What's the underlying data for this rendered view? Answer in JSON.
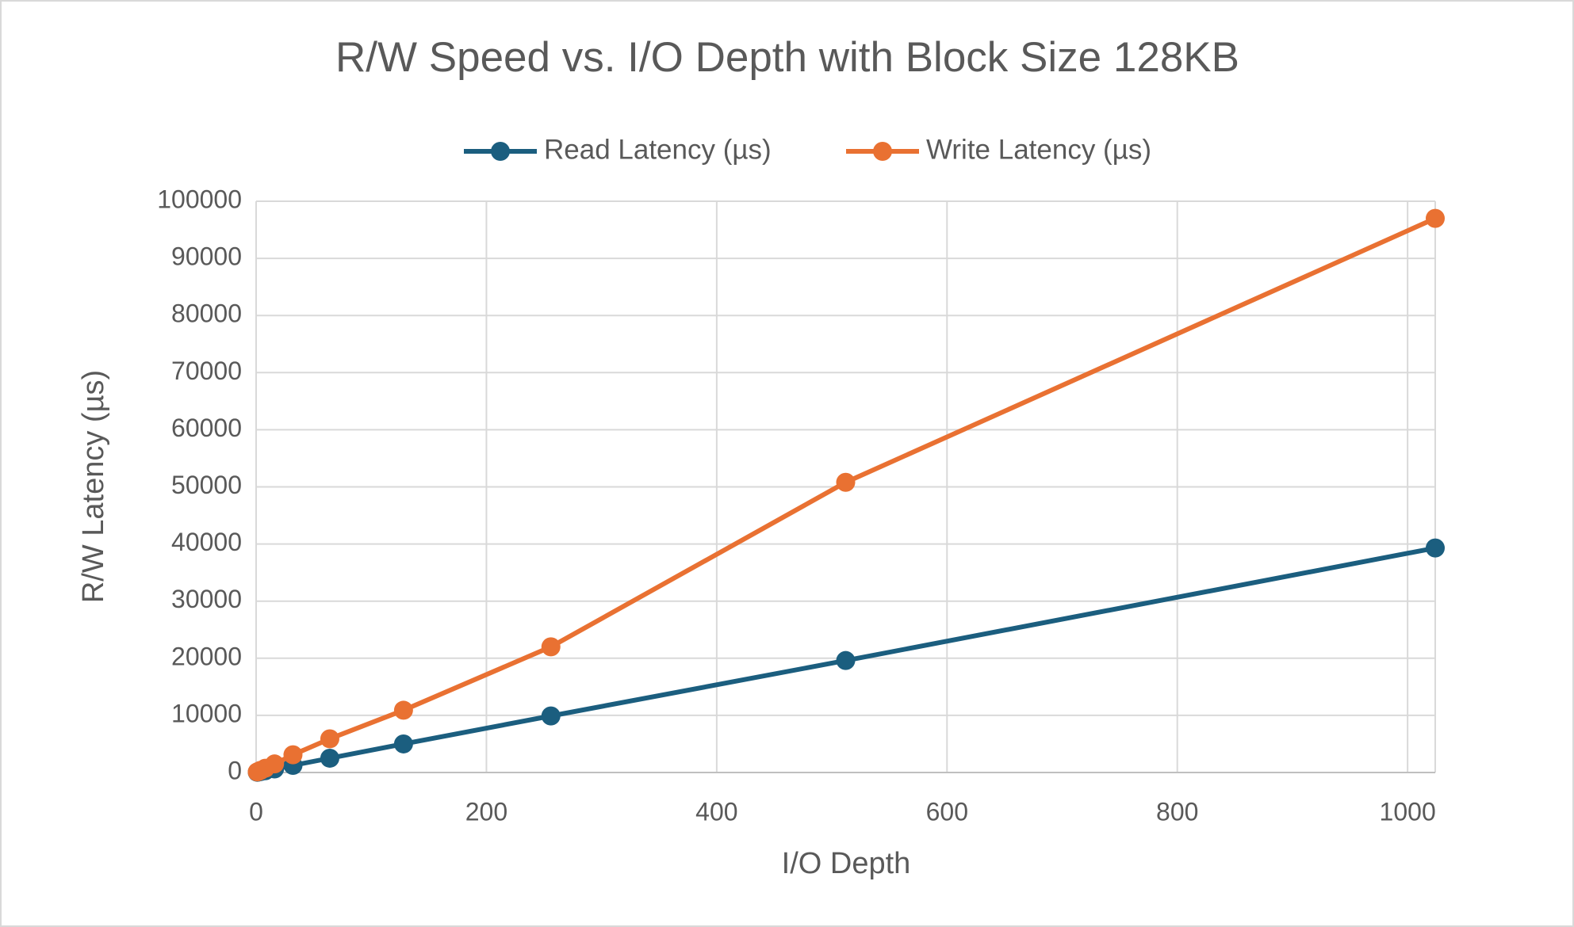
{
  "chart_data": {
    "type": "line",
    "title": "R/W Speed vs. I/O Depth with Block Size 128KB",
    "x_label": "I/O Depth",
    "y_label": "R/W Latency (µs)",
    "x": [
      1,
      2,
      4,
      8,
      16,
      32,
      64,
      128,
      256,
      512,
      1024
    ],
    "series": [
      {
        "name": "Read Latency (µs)",
        "color": "#1b5e7f",
        "values": [
          40,
          80,
          160,
          310,
          620,
          1250,
          2500,
          5000,
          9900,
          19600,
          39300
        ]
      },
      {
        "name": "Write Latency (µs)",
        "color": "#e97132",
        "values": [
          100,
          190,
          380,
          750,
          1500,
          3100,
          5900,
          10900,
          22000,
          50800,
          97000
        ]
      }
    ],
    "xlim": [
      0,
      1024
    ],
    "xticks": [
      0,
      200,
      400,
      600,
      800,
      1000
    ],
    "ylim": [
      0,
      100000
    ],
    "yticks": [
      0,
      10000,
      20000,
      30000,
      40000,
      50000,
      60000,
      70000,
      80000,
      90000,
      100000
    ],
    "grid": true,
    "legend": "top"
  }
}
